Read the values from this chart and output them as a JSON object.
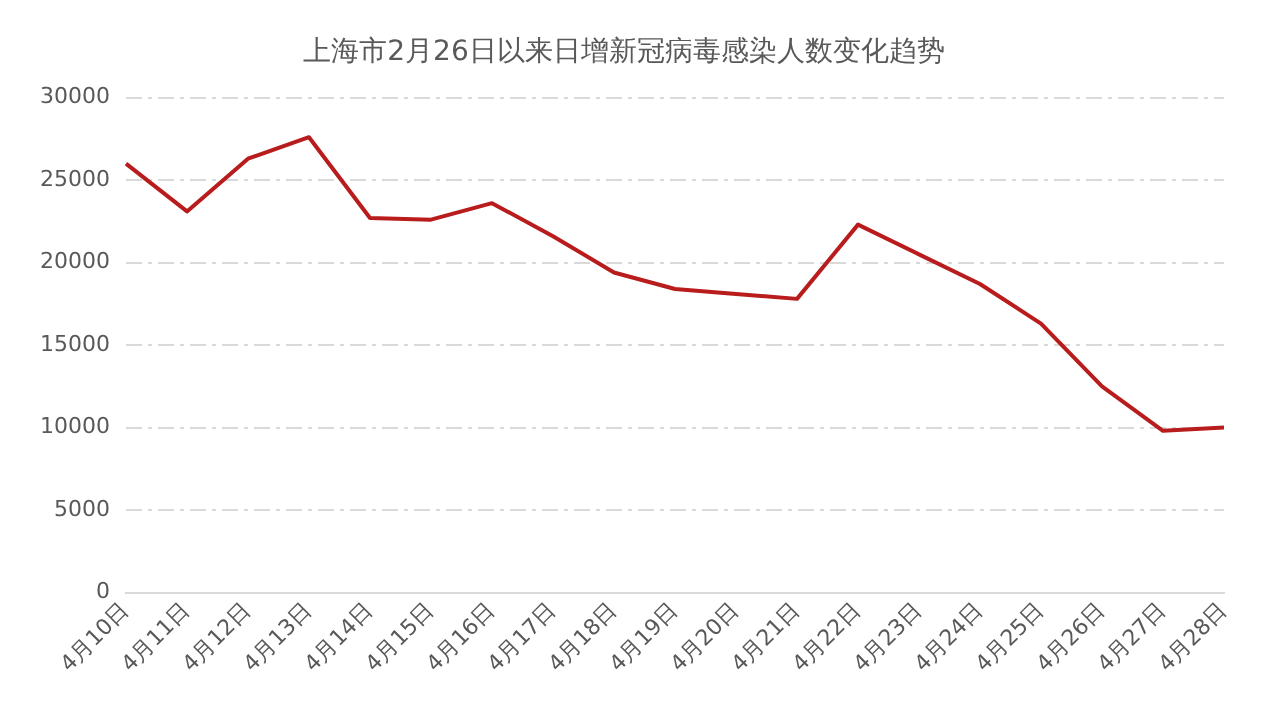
{
  "chart_data": {
    "type": "line",
    "title": "上海市2月26日以来日增新冠病毒感染人数变化趋势",
    "categories": [
      "4月10日",
      "4月11日",
      "4月12日",
      "4月13日",
      "4月14日",
      "4月15日",
      "4月16日",
      "4月17日",
      "4月18日",
      "4月19日",
      "4月20日",
      "4月21日",
      "4月22日",
      "4月23日",
      "4月24日",
      "4月25日",
      "4月26日",
      "4月27日",
      "4月28日"
    ],
    "series": [
      {
        "color": "#b81c1c",
        "values": [
          26000,
          23100,
          26300,
          27600,
          22700,
          22600,
          23600,
          21600,
          19400,
          18400,
          18100,
          17800,
          22300,
          20500,
          18700,
          16300,
          12500,
          9800,
          10000
        ]
      }
    ],
    "ylim": [
      0,
      30000
    ],
    "yticks": [
      0,
      5000,
      10000,
      15000,
      20000,
      25000,
      30000
    ],
    "grid": "y",
    "legend": false,
    "marker": "none",
    "line_style": "solid"
  }
}
